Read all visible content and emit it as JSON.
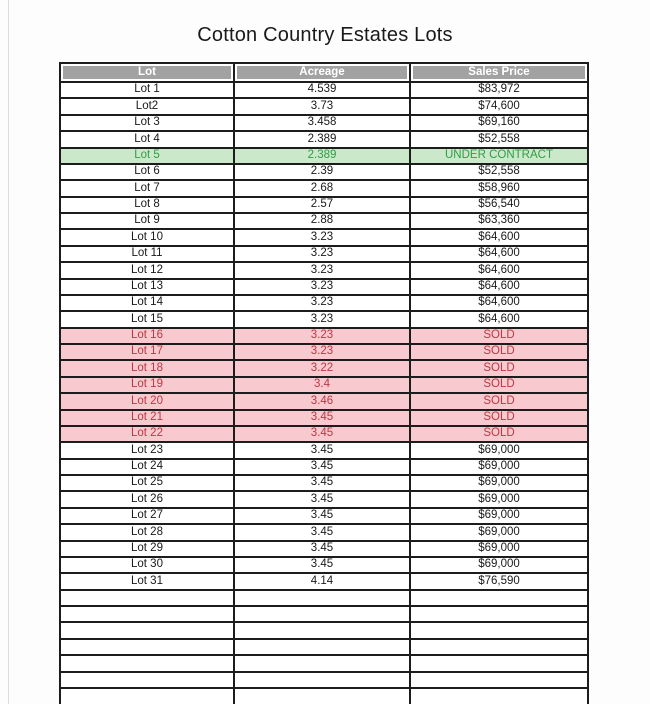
{
  "title": "Cotton Country Estates Lots",
  "colors": {
    "page_bg": "#fdfdfd",
    "border": "#1c1c1c",
    "header_bg": "#a2a2a2",
    "header_text": "#ffffff",
    "row_text": "#1a1a1a",
    "under_contract_bg": "#cbe8cb",
    "under_contract_text": "#2f9e44",
    "sold_bg": "#f8c9ce",
    "sold_text": "#bb3944"
  },
  "table": {
    "columns": [
      "Lot",
      "Acreage",
      "Sales Price"
    ],
    "empty_row_count": 7,
    "rows": [
      {
        "lot": "Lot 1",
        "acreage": "4.539",
        "price": "$83,972",
        "highlight": "none"
      },
      {
        "lot": "Lot2",
        "acreage": "3.73",
        "price": "$74,600",
        "highlight": "none"
      },
      {
        "lot": "Lot 3",
        "acreage": "3.458",
        "price": "$69,160",
        "highlight": "none"
      },
      {
        "lot": "Lot 4",
        "acreage": "2.389",
        "price": "$52,558",
        "highlight": "none"
      },
      {
        "lot": "Lot 5",
        "acreage": "2.389",
        "price": "UNDER CONTRACT",
        "highlight": "under_contract"
      },
      {
        "lot": "Lot 6",
        "acreage": "2.39",
        "price": "$52,558",
        "highlight": "none"
      },
      {
        "lot": "Lot 7",
        "acreage": "2.68",
        "price": "$58,960",
        "highlight": "none"
      },
      {
        "lot": "Lot 8",
        "acreage": "2.57",
        "price": "$56,540",
        "highlight": "none"
      },
      {
        "lot": "Lot 9",
        "acreage": "2.88",
        "price": "$63,360",
        "highlight": "none"
      },
      {
        "lot": "Lot 10",
        "acreage": "3.23",
        "price": "$64,600",
        "highlight": "none"
      },
      {
        "lot": "Lot 11",
        "acreage": "3.23",
        "price": "$64,600",
        "highlight": "none"
      },
      {
        "lot": "Lot 12",
        "acreage": "3.23",
        "price": "$64,600",
        "highlight": "none"
      },
      {
        "lot": "Lot 13",
        "acreage": "3.23",
        "price": "$64,600",
        "highlight": "none"
      },
      {
        "lot": "Lot 14",
        "acreage": "3.23",
        "price": "$64,600",
        "highlight": "none"
      },
      {
        "lot": "Lot 15",
        "acreage": "3.23",
        "price": "$64,600",
        "highlight": "none"
      },
      {
        "lot": "Lot 16",
        "acreage": "3.23",
        "price": "SOLD",
        "highlight": "sold"
      },
      {
        "lot": "Lot 17",
        "acreage": "3.23",
        "price": "SOLD",
        "highlight": "sold"
      },
      {
        "lot": "Lot 18",
        "acreage": "3.22",
        "price": "SOLD",
        "highlight": "sold"
      },
      {
        "lot": "Lot 19",
        "acreage": "3.4",
        "price": "SOLD",
        "highlight": "sold"
      },
      {
        "lot": "Lot 20",
        "acreage": "3.46",
        "price": "SOLD",
        "highlight": "sold"
      },
      {
        "lot": "Lot 21",
        "acreage": "3.45",
        "price": "SOLD",
        "highlight": "sold"
      },
      {
        "lot": "Lot 22",
        "acreage": "3.45",
        "price": "SOLD",
        "highlight": "sold"
      },
      {
        "lot": "Lot 23",
        "acreage": "3.45",
        "price": "$69,000",
        "highlight": "none"
      },
      {
        "lot": "Lot 24",
        "acreage": "3.45",
        "price": "$69,000",
        "highlight": "none"
      },
      {
        "lot": "Lot 25",
        "acreage": "3.45",
        "price": "$69,000",
        "highlight": "none"
      },
      {
        "lot": "Lot 26",
        "acreage": "3.45",
        "price": "$69,000",
        "highlight": "none"
      },
      {
        "lot": "Lot 27",
        "acreage": "3.45",
        "price": "$69,000",
        "highlight": "none"
      },
      {
        "lot": "Lot 28",
        "acreage": "3.45",
        "price": "$69,000",
        "highlight": "none"
      },
      {
        "lot": "Lot 29",
        "acreage": "3.45",
        "price": "$69,000",
        "highlight": "none"
      },
      {
        "lot": "Lot 30",
        "acreage": "3.45",
        "price": "$69,000",
        "highlight": "none"
      },
      {
        "lot": "Lot 31",
        "acreage": "4.14",
        "price": "$76,590",
        "highlight": "none"
      }
    ]
  }
}
